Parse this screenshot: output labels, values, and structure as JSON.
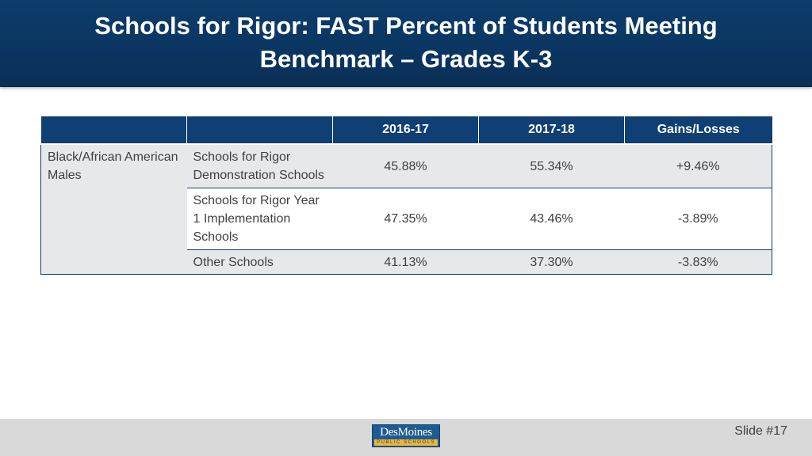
{
  "header": {
    "title_line1": "Schools for Rigor: FAST Percent of Students Meeting",
    "title_line2": "Benchmark – Grades K-3"
  },
  "table": {
    "columns": [
      "",
      "",
      "2016-17",
      "2017-18",
      "Gains/Losses"
    ],
    "group_label": "Black/African American Males",
    "rows": [
      {
        "label": "Schools for Rigor Demonstration Schools",
        "y2016": "45.88%",
        "y2017": "55.34%",
        "change": "+9.46%"
      },
      {
        "label": "Schools for Rigor Year 1 Implementation Schools",
        "y2016": "47.35%",
        "y2017": "43.46%",
        "change": "-3.89%"
      },
      {
        "label": "Other Schools",
        "y2016": "41.13%",
        "y2017": "37.30%",
        "change": "-3.83%"
      }
    ]
  },
  "footer": {
    "logo_main": "DesMoines",
    "logo_sub": "PUBLIC SCHOOLS",
    "slide_number": "Slide #17"
  },
  "colors": {
    "header_bg": "#0d3d6b",
    "table_header_bg": "#0f3f73",
    "row_shade": "#e7e8ea",
    "footer_bg": "#d9d9d9"
  }
}
